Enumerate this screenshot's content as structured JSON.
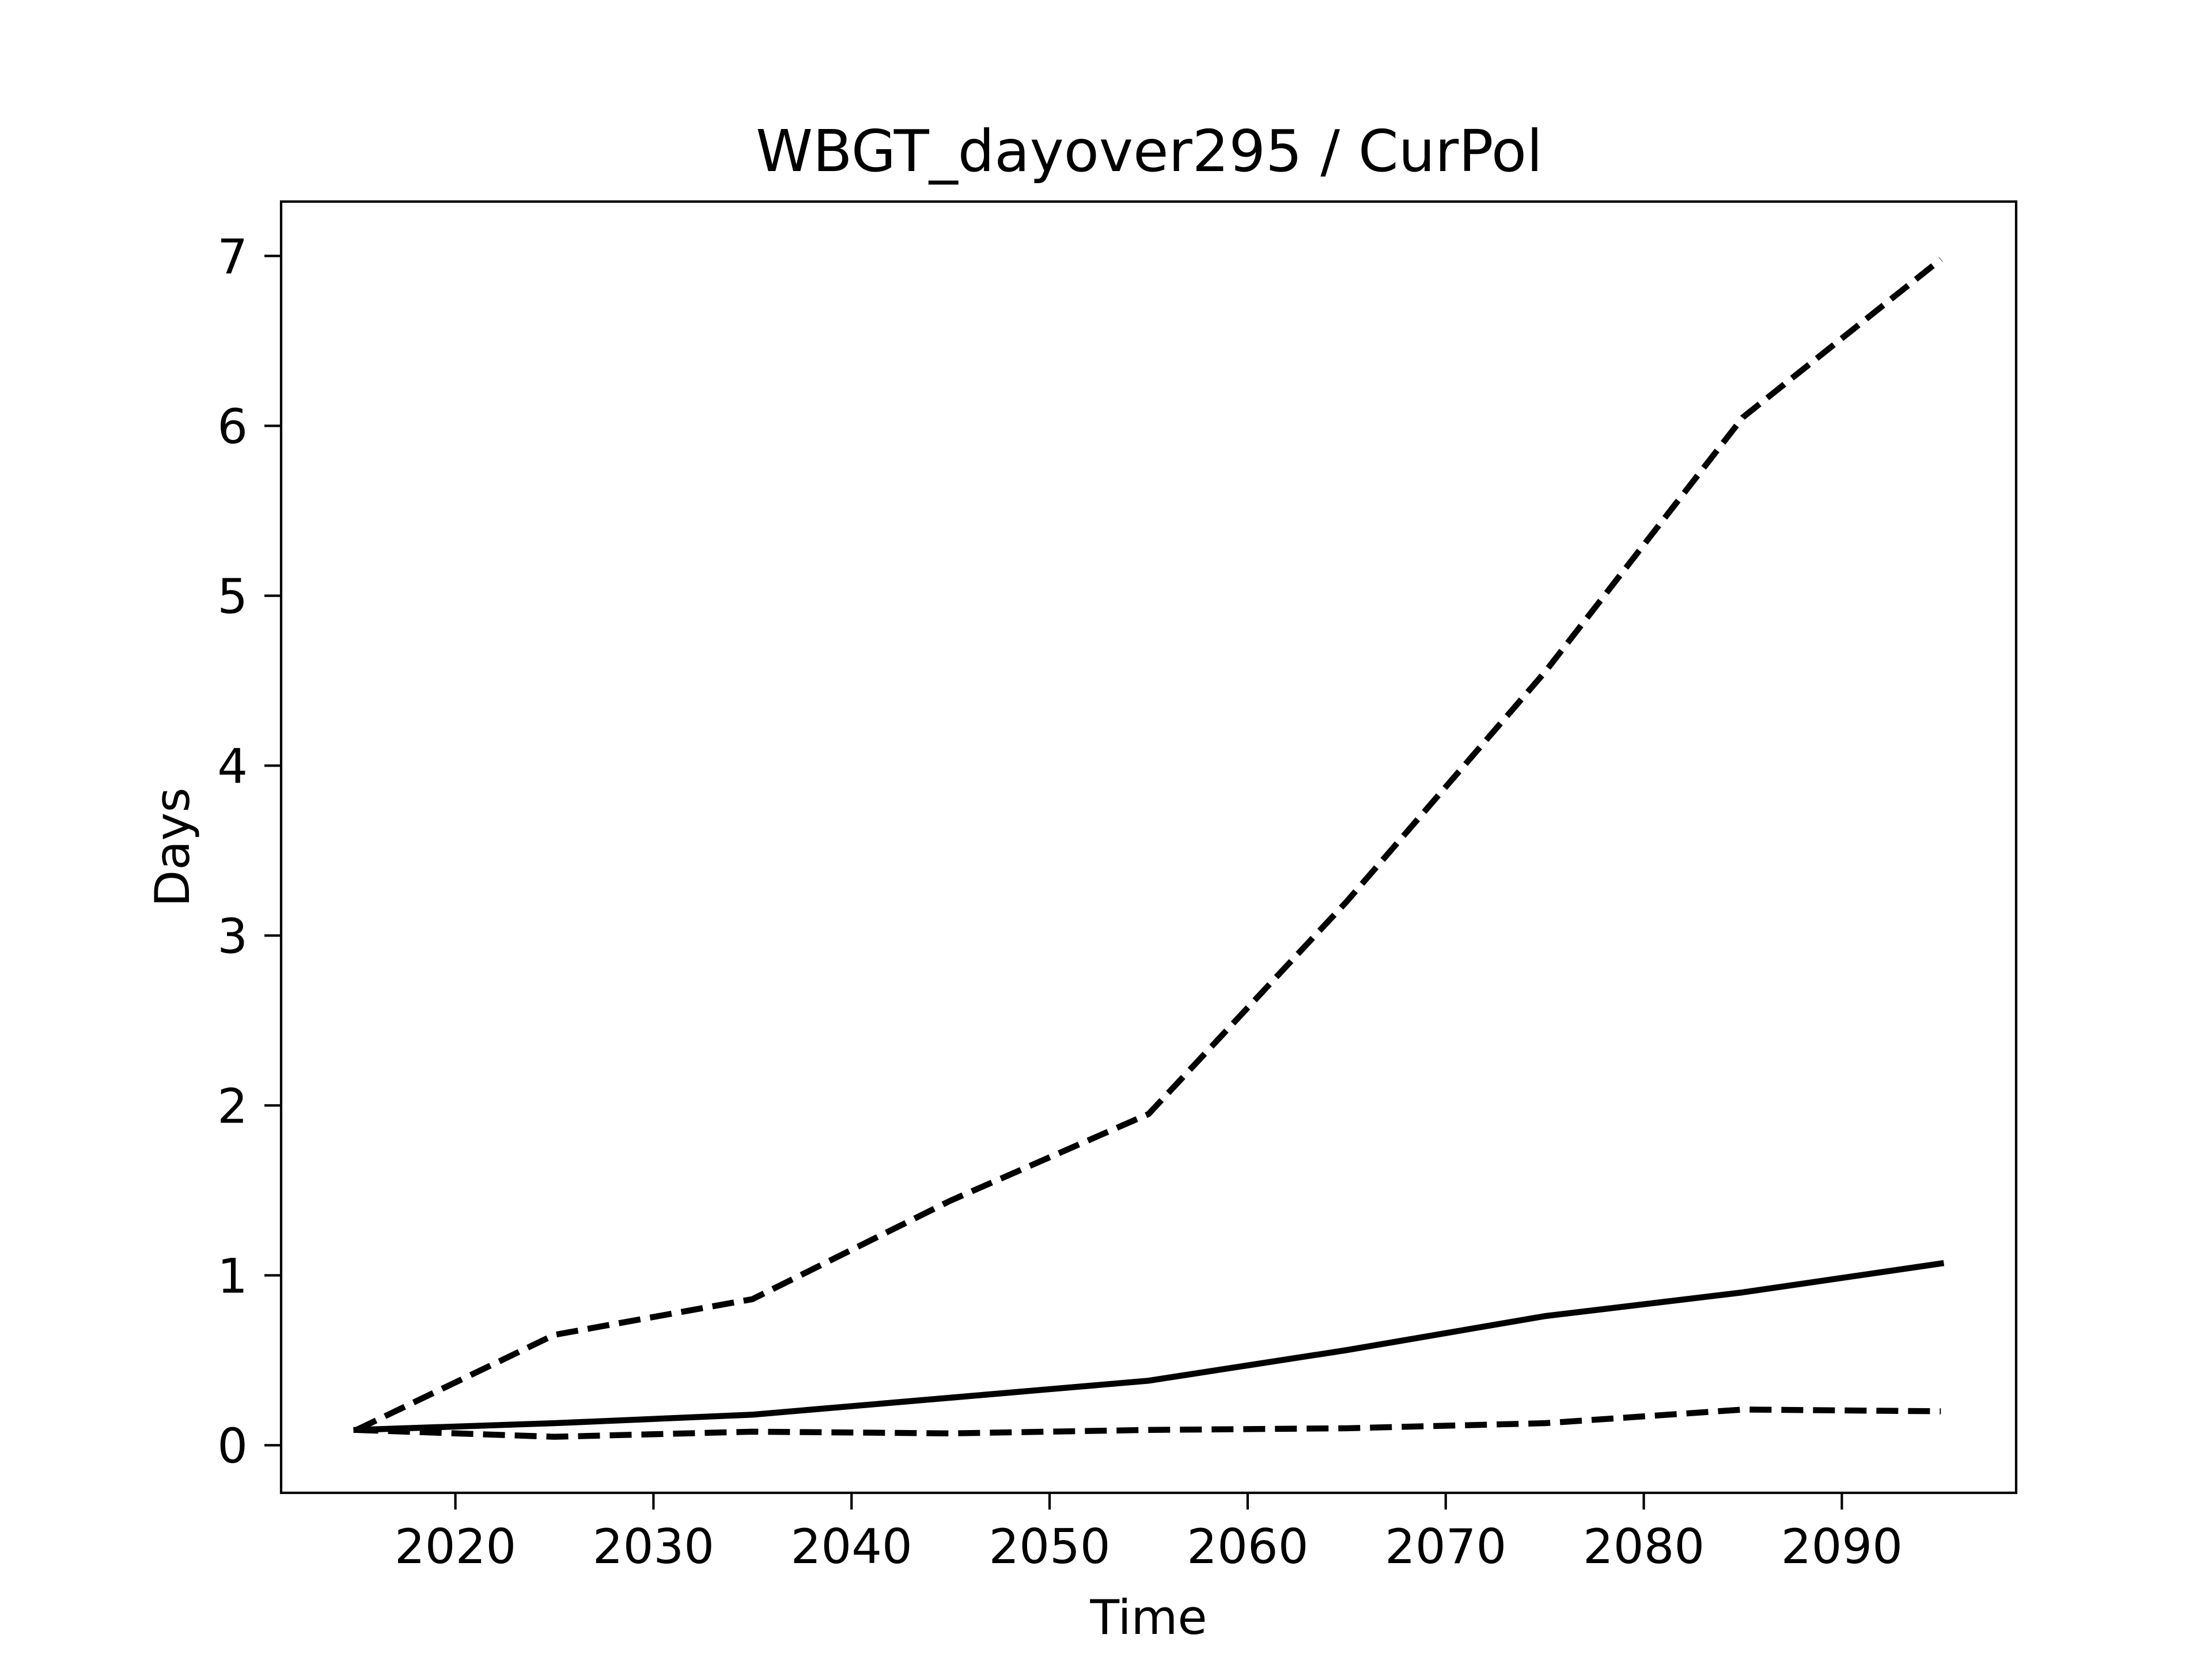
{
  "chart_data": {
    "type": "line",
    "title": "WBGT_dayover295 / CurPol",
    "xlabel": "Time",
    "ylabel": "Days",
    "xlim": [
      2011.2,
      2098.8
    ],
    "ylim": [
      -0.28,
      7.32
    ],
    "xticks": [
      2020,
      2030,
      2040,
      2050,
      2060,
      2070,
      2080,
      2090
    ],
    "yticks": [
      0,
      1,
      2,
      3,
      4,
      5,
      6,
      7
    ],
    "grid": false,
    "legend": "none",
    "x": [
      2015,
      2025,
      2035,
      2045,
      2055,
      2065,
      2075,
      2085,
      2095
    ],
    "series": [
      {
        "style": "dashed",
        "color": "#000000",
        "values": [
          0.09,
          0.65,
          0.86,
          1.44,
          1.95,
          3.2,
          4.55,
          6.05,
          6.98
        ]
      },
      {
        "style": "solid",
        "color": "#000000",
        "values": [
          0.09,
          0.13,
          0.18,
          0.28,
          0.38,
          0.56,
          0.76,
          0.9,
          1.07
        ]
      },
      {
        "style": "dashed",
        "color": "#000000",
        "values": [
          0.09,
          0.05,
          0.08,
          0.07,
          0.09,
          0.1,
          0.13,
          0.21,
          0.2
        ]
      }
    ]
  }
}
